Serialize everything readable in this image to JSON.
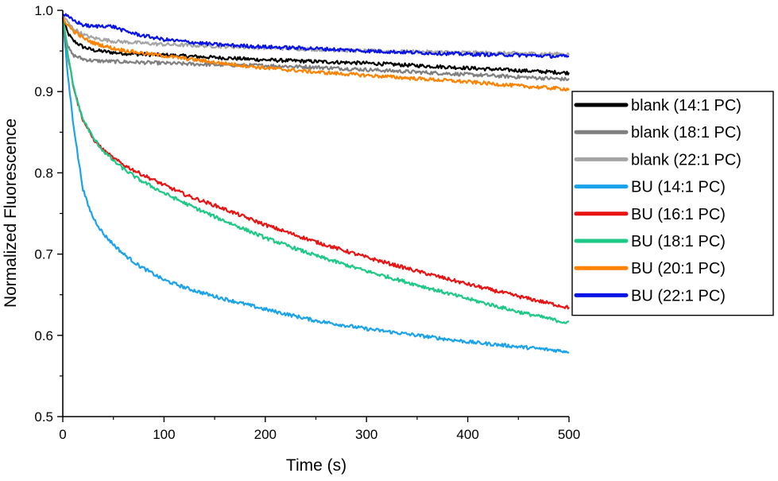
{
  "chart_data": {
    "type": "line",
    "title": "",
    "xlabel": "Time (s)",
    "ylabel": "Normalized Fluorescence",
    "xlim": [
      0,
      500
    ],
    "ylim": [
      0.5,
      1.0
    ],
    "x_ticks": [
      0,
      100,
      200,
      300,
      400,
      500
    ],
    "y_ticks": [
      0.5,
      0.6,
      0.7,
      0.8,
      0.9,
      1.0
    ],
    "y_tick_labels": [
      "0.5",
      "0.6",
      "0.7",
      "0.8",
      "0.9",
      "1.0"
    ],
    "grid": false,
    "legend_position": "right",
    "series": [
      {
        "name": "blank (14:1 PC)",
        "color": "#000000",
        "x": [
          0,
          5,
          10,
          20,
          30,
          50,
          75,
          100,
          150,
          200,
          250,
          300,
          350,
          400,
          450,
          500
        ],
        "y": [
          0.99,
          0.972,
          0.963,
          0.955,
          0.951,
          0.948,
          0.946,
          0.945,
          0.942,
          0.939,
          0.937,
          0.935,
          0.932,
          0.929,
          0.926,
          0.923
        ]
      },
      {
        "name": "blank (18:1 PC)",
        "color": "#7f7f7f",
        "x": [
          0,
          5,
          10,
          20,
          30,
          50,
          75,
          100,
          150,
          200,
          250,
          300,
          350,
          400,
          450,
          500
        ],
        "y": [
          0.99,
          0.955,
          0.945,
          0.94,
          0.938,
          0.937,
          0.936,
          0.935,
          0.933,
          0.932,
          0.93,
          0.927,
          0.924,
          0.921,
          0.918,
          0.915
        ]
      },
      {
        "name": "blank (22:1 PC)",
        "color": "#a5a5a5",
        "x": [
          0,
          5,
          10,
          20,
          30,
          50,
          75,
          100,
          150,
          200,
          250,
          300,
          350,
          400,
          450,
          500
        ],
        "y": [
          0.995,
          0.985,
          0.978,
          0.97,
          0.966,
          0.962,
          0.96,
          0.958,
          0.956,
          0.954,
          0.952,
          0.95,
          0.949,
          0.948,
          0.947,
          0.946
        ]
      },
      {
        "name": "BU (14:1 PC)",
        "color": "#1aa3ea",
        "x": [
          0,
          5,
          10,
          15,
          20,
          25,
          30,
          40,
          50,
          60,
          75,
          100,
          125,
          150,
          200,
          250,
          300,
          350,
          400,
          450,
          500
        ],
        "y": [
          0.99,
          0.92,
          0.865,
          0.82,
          0.78,
          0.76,
          0.745,
          0.725,
          0.712,
          0.7,
          0.686,
          0.668,
          0.657,
          0.648,
          0.632,
          0.618,
          0.608,
          0.6,
          0.592,
          0.586,
          0.58
        ]
      },
      {
        "name": "BU (16:1 PC)",
        "color": "#e81414",
        "x": [
          0,
          5,
          10,
          15,
          20,
          30,
          40,
          50,
          60,
          75,
          100,
          125,
          150,
          200,
          250,
          300,
          350,
          400,
          450,
          500
        ],
        "y": [
          0.99,
          0.945,
          0.91,
          0.885,
          0.865,
          0.842,
          0.828,
          0.818,
          0.81,
          0.8,
          0.785,
          0.771,
          0.76,
          0.736,
          0.715,
          0.696,
          0.679,
          0.663,
          0.648,
          0.634
        ]
      },
      {
        "name": "BU (18:1 PC)",
        "color": "#1ec887",
        "x": [
          0,
          5,
          10,
          15,
          20,
          30,
          40,
          50,
          60,
          75,
          100,
          125,
          150,
          200,
          250,
          300,
          350,
          400,
          450,
          500
        ],
        "y": [
          0.99,
          0.945,
          0.91,
          0.885,
          0.866,
          0.843,
          0.827,
          0.815,
          0.805,
          0.792,
          0.775,
          0.76,
          0.746,
          0.72,
          0.698,
          0.679,
          0.662,
          0.645,
          0.629,
          0.615
        ]
      },
      {
        "name": "BU (20:1 PC)",
        "color": "#ff8200",
        "x": [
          0,
          5,
          10,
          20,
          30,
          50,
          75,
          100,
          150,
          200,
          250,
          300,
          350,
          400,
          450,
          500
        ],
        "y": [
          0.99,
          0.982,
          0.975,
          0.966,
          0.96,
          0.953,
          0.948,
          0.944,
          0.936,
          0.929,
          0.924,
          0.92,
          0.916,
          0.912,
          0.907,
          0.903
        ]
      },
      {
        "name": "BU (22:1 PC)",
        "color": "#0a14e6",
        "x": [
          0,
          5,
          10,
          20,
          30,
          40,
          50,
          60,
          75,
          100,
          150,
          200,
          250,
          300,
          350,
          400,
          450,
          500
        ],
        "y": [
          0.996,
          0.992,
          0.988,
          0.982,
          0.98,
          0.981,
          0.98,
          0.975,
          0.97,
          0.964,
          0.958,
          0.955,
          0.953,
          0.95,
          0.948,
          0.946,
          0.945,
          0.943
        ]
      }
    ]
  }
}
